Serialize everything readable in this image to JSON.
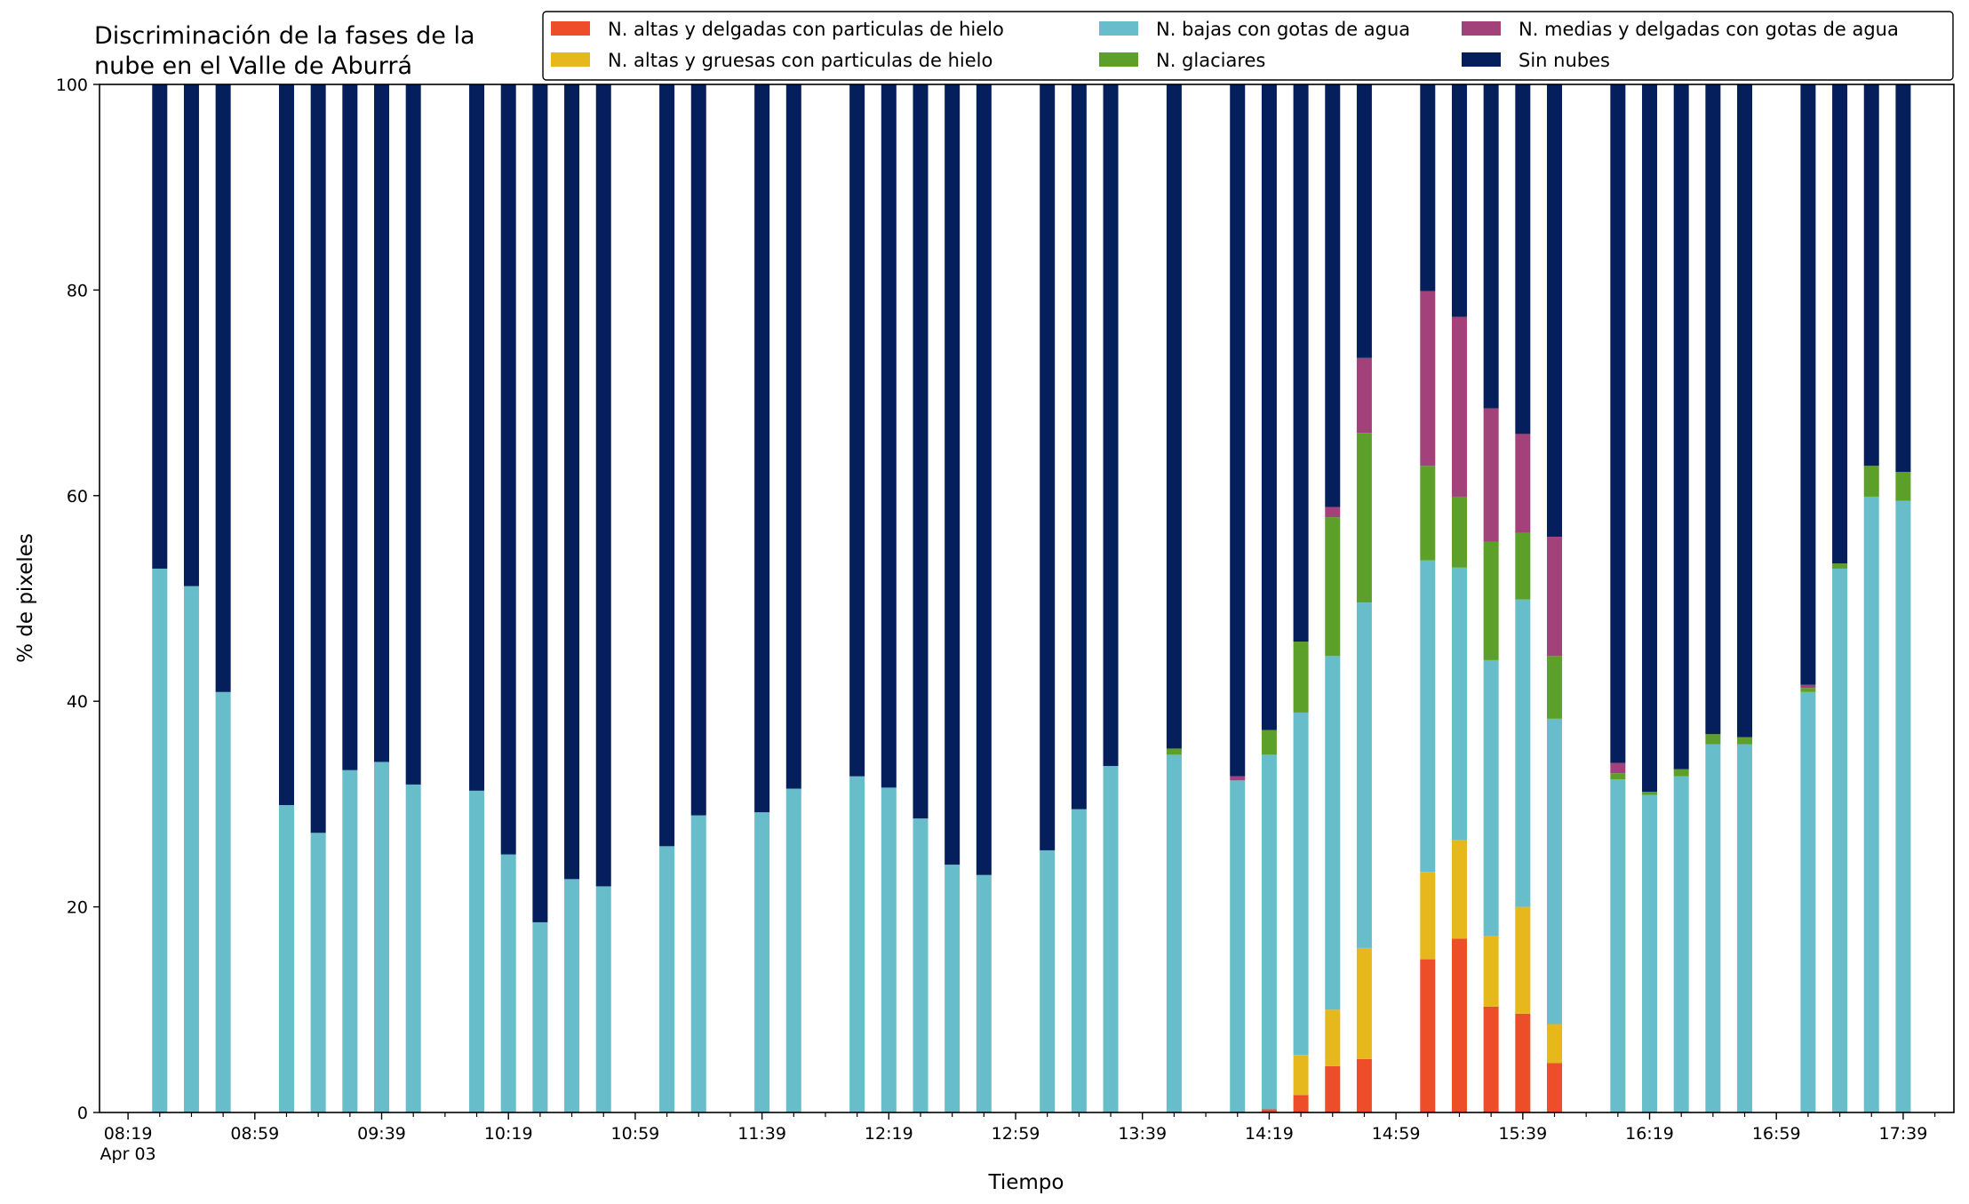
{
  "chart_data": {
    "type": "bar",
    "stacked": true,
    "title": "Discriminación de la fases de la\nnube en el Valle de Aburrá",
    "title_lines": [
      "Discriminación de la fases de la",
      "nube en el Valle de Aburrá"
    ],
    "xlabel": "Tiempo",
    "ylabel": "% de pixeles",
    "ylim": [
      0,
      100
    ],
    "yticks": [
      0,
      20,
      40,
      60,
      80,
      100
    ],
    "xlim_minutes": [
      490,
      1075
    ],
    "xtick_labels": [
      {
        "t": 499,
        "label": "08:19"
      },
      {
        "t": 539,
        "label": "08:59"
      },
      {
        "t": 579,
        "label": "09:39"
      },
      {
        "t": 619,
        "label": "10:19"
      },
      {
        "t": 659,
        "label": "10:59"
      },
      {
        "t": 699,
        "label": "11:39"
      },
      {
        "t": 739,
        "label": "12:19"
      },
      {
        "t": 779,
        "label": "12:59"
      },
      {
        "t": 819,
        "label": "13:39"
      },
      {
        "t": 859,
        "label": "14:19"
      },
      {
        "t": 899,
        "label": "14:59"
      },
      {
        "t": 939,
        "label": "15:39"
      },
      {
        "t": 979,
        "label": "16:19"
      },
      {
        "t": 1019,
        "label": "16:59"
      },
      {
        "t": 1059,
        "label": "17:39"
      }
    ],
    "date_label": "Apr 03",
    "minor_tick_step_minutes": 10,
    "grid": false,
    "legend_position": "top-right",
    "series": [
      {
        "key": "alt_del",
        "name": "N. altas y delgadas con particulas de hielo",
        "color": "#ee4d2a"
      },
      {
        "key": "alt_gru",
        "name": "N. altas y gruesas con particulas de hielo",
        "color": "#e6b81c"
      },
      {
        "key": "bajas",
        "name": "N. bajas con gotas de agua",
        "color": "#68bdca"
      },
      {
        "key": "glac",
        "name": "N. glaciares",
        "color": "#5ca02a"
      },
      {
        "key": "medias",
        "name": "N. medias y delgadas con gotas de agua",
        "color": "#a2417a"
      },
      {
        "key": "sin",
        "name": "Sin nubes",
        "color": "#041f5c"
      }
    ],
    "legend_order": [
      "alt_del",
      "alt_gru",
      "bajas",
      "glac",
      "medias",
      "sin"
    ],
    "bars": [
      {
        "time": "08:29",
        "alt_del": 0,
        "alt_gru": 0,
        "bajas": 52.9,
        "glac": 0,
        "medias": 0,
        "sin": 47.1
      },
      {
        "time": "08:39",
        "alt_del": 0,
        "alt_gru": 0,
        "bajas": 51.2,
        "glac": 0,
        "medias": 0,
        "sin": 48.8
      },
      {
        "time": "08:49",
        "alt_del": 0,
        "alt_gru": 0,
        "bajas": 40.9,
        "glac": 0,
        "medias": 0,
        "sin": 59.1
      },
      {
        "time": "09:09",
        "alt_del": 0,
        "alt_gru": 0,
        "bajas": 29.9,
        "glac": 0,
        "medias": 0,
        "sin": 70.1
      },
      {
        "time": "09:19",
        "alt_del": 0,
        "alt_gru": 0,
        "bajas": 27.2,
        "glac": 0,
        "medias": 0,
        "sin": 72.8
      },
      {
        "time": "09:29",
        "alt_del": 0,
        "alt_gru": 0,
        "bajas": 33.3,
        "glac": 0,
        "medias": 0,
        "sin": 66.7
      },
      {
        "time": "09:39",
        "alt_del": 0,
        "alt_gru": 0,
        "bajas": 34.1,
        "glac": 0,
        "medias": 0,
        "sin": 65.9
      },
      {
        "time": "09:49",
        "alt_del": 0,
        "alt_gru": 0,
        "bajas": 31.9,
        "glac": 0,
        "medias": 0,
        "sin": 68.1
      },
      {
        "time": "10:09",
        "alt_del": 0,
        "alt_gru": 0,
        "bajas": 31.3,
        "glac": 0,
        "medias": 0,
        "sin": 68.7
      },
      {
        "time": "10:19",
        "alt_del": 0,
        "alt_gru": 0,
        "bajas": 25.1,
        "glac": 0,
        "medias": 0,
        "sin": 74.9
      },
      {
        "time": "10:29",
        "alt_del": 0,
        "alt_gru": 0,
        "bajas": 18.5,
        "glac": 0,
        "medias": 0,
        "sin": 81.5
      },
      {
        "time": "10:39",
        "alt_del": 0,
        "alt_gru": 0,
        "bajas": 22.7,
        "glac": 0,
        "medias": 0,
        "sin": 77.3
      },
      {
        "time": "10:49",
        "alt_del": 0,
        "alt_gru": 0,
        "bajas": 22.0,
        "glac": 0,
        "medias": 0,
        "sin": 78.0
      },
      {
        "time": "11:09",
        "alt_del": 0,
        "alt_gru": 0,
        "bajas": 25.9,
        "glac": 0,
        "medias": 0,
        "sin": 74.1
      },
      {
        "time": "11:19",
        "alt_del": 0,
        "alt_gru": 0,
        "bajas": 28.9,
        "glac": 0,
        "medias": 0,
        "sin": 71.1
      },
      {
        "time": "11:39",
        "alt_del": 0,
        "alt_gru": 0,
        "bajas": 29.2,
        "glac": 0,
        "medias": 0,
        "sin": 70.8
      },
      {
        "time": "11:49",
        "alt_del": 0,
        "alt_gru": 0,
        "bajas": 31.5,
        "glac": 0,
        "medias": 0,
        "sin": 68.5
      },
      {
        "time": "12:09",
        "alt_del": 0,
        "alt_gru": 0,
        "bajas": 32.7,
        "glac": 0,
        "medias": 0,
        "sin": 67.3
      },
      {
        "time": "12:19",
        "alt_del": 0,
        "alt_gru": 0,
        "bajas": 31.6,
        "glac": 0,
        "medias": 0,
        "sin": 68.4
      },
      {
        "time": "12:29",
        "alt_del": 0,
        "alt_gru": 0,
        "bajas": 28.6,
        "glac": 0,
        "medias": 0,
        "sin": 71.4
      },
      {
        "time": "12:39",
        "alt_del": 0,
        "alt_gru": 0,
        "bajas": 24.1,
        "glac": 0,
        "medias": 0,
        "sin": 75.9
      },
      {
        "time": "12:49",
        "alt_del": 0,
        "alt_gru": 0,
        "bajas": 23.1,
        "glac": 0,
        "medias": 0,
        "sin": 76.9
      },
      {
        "time": "13:09",
        "alt_del": 0,
        "alt_gru": 0,
        "bajas": 25.5,
        "glac": 0,
        "medias": 0,
        "sin": 74.5
      },
      {
        "time": "13:19",
        "alt_del": 0,
        "alt_gru": 0,
        "bajas": 29.5,
        "glac": 0,
        "medias": 0,
        "sin": 70.5
      },
      {
        "time": "13:29",
        "alt_del": 0,
        "alt_gru": 0,
        "bajas": 33.7,
        "glac": 0,
        "medias": 0,
        "sin": 66.3
      },
      {
        "time": "13:49",
        "alt_del": 0,
        "alt_gru": 0,
        "bajas": 34.8,
        "glac": 0.6,
        "medias": 0,
        "sin": 64.6
      },
      {
        "time": "14:09",
        "alt_del": 0,
        "alt_gru": 0,
        "bajas": 32.3,
        "glac": 0,
        "medias": 0.4,
        "sin": 67.3
      },
      {
        "time": "14:19",
        "alt_del": 0.3,
        "alt_gru": 0,
        "bajas": 34.5,
        "glac": 2.4,
        "medias": 0,
        "sin": 62.8
      },
      {
        "time": "14:29",
        "alt_del": 1.7,
        "alt_gru": 3.9,
        "bajas": 33.3,
        "glac": 6.9,
        "medias": 0,
        "sin": 54.2
      },
      {
        "time": "14:39",
        "alt_del": 4.5,
        "alt_gru": 5.5,
        "bajas": 34.4,
        "glac": 13.5,
        "medias": 1.0,
        "sin": 41.1
      },
      {
        "time": "14:49",
        "alt_del": 5.2,
        "alt_gru": 10.8,
        "bajas": 33.6,
        "glac": 16.5,
        "medias": 7.3,
        "sin": 26.6
      },
      {
        "time": "15:09",
        "alt_del": 14.9,
        "alt_gru": 8.5,
        "bajas": 30.3,
        "glac": 9.2,
        "medias": 17.0,
        "sin": 20.1
      },
      {
        "time": "15:19",
        "alt_del": 16.9,
        "alt_gru": 9.6,
        "bajas": 26.5,
        "glac": 6.9,
        "medias": 17.5,
        "sin": 22.6
      },
      {
        "time": "15:29",
        "alt_del": 10.3,
        "alt_gru": 6.9,
        "bajas": 26.8,
        "glac": 11.5,
        "medias": 13.0,
        "sin": 31.5
      },
      {
        "time": "15:39",
        "alt_del": 9.6,
        "alt_gru": 10.4,
        "bajas": 29.9,
        "glac": 6.5,
        "medias": 9.6,
        "sin": 34.0
      },
      {
        "time": "15:49",
        "alt_del": 4.8,
        "alt_gru": 3.8,
        "bajas": 29.7,
        "glac": 6.1,
        "medias": 11.6,
        "sin": 44.0
      },
      {
        "time": "16:09",
        "alt_del": 0,
        "alt_gru": 0,
        "bajas": 32.4,
        "glac": 0.6,
        "medias": 1.0,
        "sin": 66.0
      },
      {
        "time": "16:19",
        "alt_del": 0,
        "alt_gru": 0,
        "bajas": 30.9,
        "glac": 0.3,
        "medias": 0,
        "sin": 68.8
      },
      {
        "time": "16:29",
        "alt_del": 0,
        "alt_gru": 0,
        "bajas": 32.7,
        "glac": 0.7,
        "medias": 0,
        "sin": 66.6
      },
      {
        "time": "16:39",
        "alt_del": 0,
        "alt_gru": 0,
        "bajas": 35.8,
        "glac": 1.0,
        "medias": 0,
        "sin": 63.2
      },
      {
        "time": "16:49",
        "alt_del": 0,
        "alt_gru": 0,
        "bajas": 35.8,
        "glac": 0.7,
        "medias": 0,
        "sin": 63.5
      },
      {
        "time": "17:09",
        "alt_del": 0,
        "alt_gru": 0,
        "bajas": 40.9,
        "glac": 0.4,
        "medias": 0.3,
        "sin": 58.4
      },
      {
        "time": "17:19",
        "alt_del": 0,
        "alt_gru": 0,
        "bajas": 52.9,
        "glac": 0.5,
        "medias": 0,
        "sin": 46.6
      },
      {
        "time": "17:29",
        "alt_del": 0,
        "alt_gru": 0,
        "bajas": 59.9,
        "glac": 3.0,
        "medias": 0,
        "sin": 37.1
      },
      {
        "time": "17:39",
        "alt_del": 0,
        "alt_gru": 0,
        "bajas": 59.5,
        "glac": 2.8,
        "medias": 0,
        "sin": 37.7
      }
    ]
  }
}
